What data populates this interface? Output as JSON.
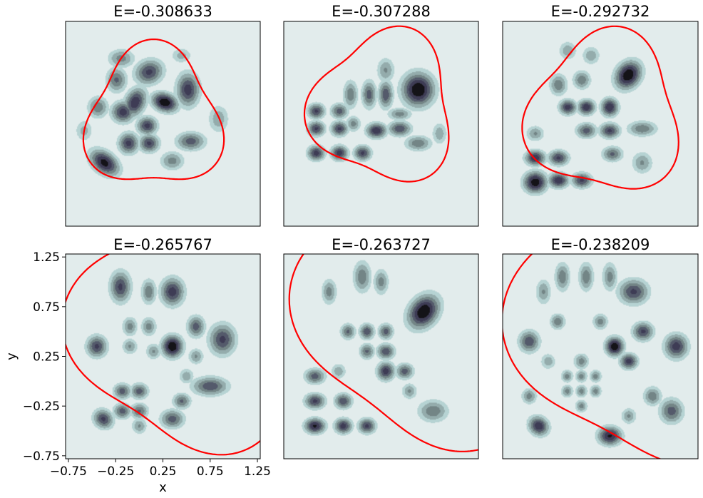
{
  "chart_data": [
    {
      "type": "heatmap",
      "title": "E=-0.308633",
      "xlabel": "",
      "ylabel": "",
      "xlim": [
        -0.8,
        1.3
      ],
      "ylim": [
        -0.8,
        1.3
      ],
      "show_ticks": false,
      "blobs": [
        [
          0.27,
          0.47,
          0.09,
          0.06,
          -0.3,
          1.0
        ],
        [
          -0.05,
          0.47,
          0.07,
          0.1,
          -0.5,
          0.8
        ],
        [
          -0.18,
          0.37,
          0.08,
          0.07,
          0.0,
          0.75
        ],
        [
          0.08,
          0.23,
          0.07,
          0.06,
          0.0,
          0.72
        ],
        [
          -0.12,
          0.05,
          0.07,
          0.07,
          0.0,
          0.72
        ],
        [
          0.1,
          0.05,
          0.07,
          0.06,
          0.0,
          0.7
        ],
        [
          -0.38,
          -0.15,
          0.11,
          0.07,
          -0.6,
          0.9
        ],
        [
          0.52,
          0.6,
          0.08,
          0.11,
          0.0,
          0.75
        ],
        [
          0.1,
          0.78,
          0.1,
          0.08,
          0.3,
          0.7
        ],
        [
          -0.25,
          0.7,
          0.07,
          0.08,
          0.0,
          0.55
        ],
        [
          -0.45,
          0.42,
          0.07,
          0.07,
          0.0,
          0.5
        ],
        [
          0.55,
          0.07,
          0.1,
          0.06,
          0.0,
          0.6
        ],
        [
          0.35,
          -0.13,
          0.08,
          0.06,
          0.0,
          0.45
        ],
        [
          -0.2,
          0.92,
          0.09,
          0.06,
          0.0,
          0.45
        ],
        [
          0.85,
          0.3,
          0.07,
          0.09,
          0.0,
          0.35
        ],
        [
          0.45,
          0.95,
          0.07,
          0.05,
          0.0,
          0.3
        ],
        [
          -0.6,
          0.18,
          0.06,
          0.07,
          0.0,
          0.3
        ]
      ],
      "boundary": {
        "cx": 0.15,
        "cy": 0.3,
        "r": 0.71,
        "a": 0.15,
        "phase": 1.571
      }
    },
    {
      "type": "heatmap",
      "title": "E=-0.307288",
      "xlabel": "",
      "ylabel": "",
      "xlim": [
        -0.8,
        1.3
      ],
      "ylim": [
        -0.8,
        1.3
      ],
      "show_ticks": false,
      "blobs": [
        [
          0.2,
          0.18,
          0.07,
          0.05,
          0.0,
          0.8
        ],
        [
          0.65,
          0.6,
          0.11,
          0.11,
          0.4,
          1.0
        ],
        [
          -0.45,
          -0.05,
          0.06,
          0.05,
          0.0,
          0.75
        ],
        [
          -0.2,
          -0.05,
          0.06,
          0.05,
          0.0,
          0.75
        ],
        [
          0.05,
          -0.05,
          0.06,
          0.05,
          0.0,
          0.7
        ],
        [
          -0.45,
          0.2,
          0.06,
          0.05,
          0.0,
          0.7
        ],
        [
          -0.2,
          0.2,
          0.06,
          0.05,
          0.0,
          0.7
        ],
        [
          -0.45,
          0.38,
          0.06,
          0.05,
          0.0,
          0.7
        ],
        [
          -0.2,
          0.38,
          0.06,
          0.05,
          0.0,
          0.6
        ],
        [
          0.45,
          0.2,
          0.08,
          0.05,
          0.0,
          0.65
        ],
        [
          0.3,
          0.55,
          0.05,
          0.09,
          0.0,
          0.65
        ],
        [
          0.12,
          0.55,
          0.05,
          0.09,
          0.0,
          0.6
        ],
        [
          -0.08,
          0.55,
          0.05,
          0.09,
          0.0,
          0.5
        ],
        [
          0.65,
          0.05,
          0.09,
          0.05,
          0.0,
          0.5
        ],
        [
          -0.05,
          0.25,
          0.05,
          0.05,
          0.0,
          0.45
        ],
        [
          0.45,
          0.35,
          0.08,
          0.04,
          0.0,
          0.45
        ],
        [
          0.3,
          0.8,
          0.06,
          0.08,
          0.0,
          0.4
        ],
        [
          0.88,
          0.15,
          0.05,
          0.07,
          0.0,
          0.35
        ]
      ],
      "boundary": {
        "cx": 0.28,
        "cy": 0.42,
        "r": 0.75,
        "a": 0.15,
        "phase": 1.2
      }
    },
    {
      "type": "heatmap",
      "title": "E=-0.292732",
      "xlabel": "",
      "ylabel": "",
      "xlim": [
        -0.8,
        1.3
      ],
      "ylim": [
        -0.8,
        1.3
      ],
      "show_ticks": false,
      "blobs": [
        [
          0.55,
          0.75,
          0.1,
          0.08,
          0.8,
          1.0
        ],
        [
          -0.45,
          -0.35,
          0.08,
          0.07,
          0.0,
          0.95
        ],
        [
          -0.2,
          -0.33,
          0.07,
          0.05,
          0.0,
          0.8
        ],
        [
          0.05,
          -0.33,
          0.07,
          0.05,
          0.0,
          0.7
        ],
        [
          -0.45,
          -0.1,
          0.07,
          0.05,
          0.0,
          0.8
        ],
        [
          -0.2,
          -0.1,
          0.07,
          0.05,
          0.0,
          0.7
        ],
        [
          0.1,
          0.42,
          0.06,
          0.05,
          0.0,
          0.8
        ],
        [
          0.35,
          0.42,
          0.06,
          0.06,
          0.0,
          0.82
        ],
        [
          -0.1,
          0.42,
          0.06,
          0.05,
          0.0,
          0.75
        ],
        [
          0.35,
          0.18,
          0.07,
          0.05,
          0.0,
          0.7
        ],
        [
          0.1,
          0.18,
          0.07,
          0.05,
          0.0,
          0.6
        ],
        [
          0.38,
          -0.06,
          0.07,
          0.05,
          0.0,
          0.55
        ],
        [
          0.7,
          0.2,
          0.1,
          0.05,
          0.0,
          0.5
        ],
        [
          -0.2,
          0.65,
          0.06,
          0.07,
          0.0,
          0.5
        ],
        [
          -0.45,
          0.15,
          0.06,
          0.05,
          0.0,
          0.4
        ],
        [
          0.05,
          0.7,
          0.06,
          0.06,
          0.0,
          0.5
        ],
        [
          0.7,
          -0.15,
          0.07,
          0.07,
          0.0,
          0.4
        ],
        [
          -0.1,
          1.0,
          0.06,
          0.06,
          0.0,
          0.35
        ],
        [
          0.15,
          0.95,
          0.06,
          0.06,
          0.0,
          0.35
        ]
      ],
      "boundary": {
        "cx": 0.3,
        "cy": 0.35,
        "r": 0.8,
        "a": 0.14,
        "phase": 1.35
      }
    },
    {
      "type": "heatmap",
      "title": "E=-0.265767",
      "xlabel": "x",
      "ylabel": "y",
      "xlim": [
        -0.78,
        1.28
      ],
      "ylim": [
        -0.78,
        1.28
      ],
      "show_ticks": true,
      "xticks": [
        "−0.75",
        "−0.25",
        "0.25",
        "0.75",
        "1.25"
      ],
      "yticks": [
        "−0.75",
        "−0.25",
        "0.25",
        "0.75",
        "1.25"
      ],
      "xtick_values": [
        -0.75,
        -0.25,
        0.25,
        0.75,
        1.25
      ],
      "ytick_values": [
        -0.75,
        -0.25,
        0.25,
        0.75,
        1.25
      ],
      "blobs": [
        [
          0.35,
          0.35,
          0.07,
          0.07,
          0.0,
          1.0
        ],
        [
          0.35,
          0.9,
          0.08,
          0.09,
          0.0,
          0.75
        ],
        [
          -0.2,
          0.95,
          0.07,
          0.1,
          0.0,
          0.7
        ],
        [
          0.88,
          0.42,
          0.09,
          0.1,
          0.0,
          0.7
        ],
        [
          -0.45,
          0.35,
          0.07,
          0.07,
          0.0,
          0.7
        ],
        [
          0.75,
          -0.05,
          0.12,
          0.06,
          0.0,
          0.65
        ],
        [
          0.6,
          0.55,
          0.06,
          0.07,
          0.0,
          0.6
        ],
        [
          -0.38,
          -0.38,
          0.07,
          0.06,
          -0.5,
          0.7
        ],
        [
          0.35,
          -0.38,
          0.08,
          0.06,
          0.0,
          0.6
        ],
        [
          -0.18,
          -0.1,
          0.06,
          0.05,
          0.0,
          0.6
        ],
        [
          0.0,
          -0.1,
          0.06,
          0.05,
          0.0,
          0.6
        ],
        [
          0.45,
          -0.2,
          0.06,
          0.05,
          0.0,
          0.55
        ],
        [
          -0.18,
          -0.3,
          0.06,
          0.05,
          0.0,
          0.6
        ],
        [
          0.0,
          -0.3,
          0.06,
          0.05,
          0.0,
          0.55
        ],
        [
          0.1,
          0.9,
          0.05,
          0.08,
          0.0,
          0.5
        ],
        [
          -0.1,
          0.55,
          0.05,
          0.06,
          0.0,
          0.45
        ],
        [
          0.1,
          0.55,
          0.05,
          0.06,
          0.0,
          0.45
        ],
        [
          -0.1,
          0.35,
          0.05,
          0.05,
          0.0,
          0.4
        ],
        [
          0.15,
          0.3,
          0.05,
          0.05,
          0.0,
          0.4
        ],
        [
          0.6,
          0.25,
          0.05,
          0.05,
          0.0,
          0.4
        ],
        [
          0.0,
          -0.45,
          0.05,
          0.05,
          0.0,
          0.4
        ],
        [
          0.5,
          0.05,
          0.05,
          0.05,
          0.0,
          0.35
        ]
      ],
      "boundary": {
        "cx": 0.55,
        "cy": 0.55,
        "r": 1.2,
        "a": 0.14,
        "phase": 1.0
      }
    },
    {
      "type": "heatmap",
      "title": "E=-0.263727",
      "xlabel": "",
      "ylabel": "",
      "xlim": [
        -0.78,
        1.28
      ],
      "ylim": [
        -0.78,
        1.28
      ],
      "show_ticks": false,
      "blobs": [
        [
          0.7,
          0.7,
          0.12,
          0.09,
          0.8,
          1.0
        ],
        [
          -0.45,
          -0.45,
          0.07,
          0.05,
          0.0,
          0.85
        ],
        [
          -0.15,
          -0.45,
          0.06,
          0.05,
          0.0,
          0.75
        ],
        [
          0.1,
          -0.45,
          0.06,
          0.05,
          0.0,
          0.7
        ],
        [
          -0.45,
          -0.2,
          0.07,
          0.05,
          0.0,
          0.7
        ],
        [
          -0.15,
          -0.2,
          0.06,
          0.05,
          0.0,
          0.65
        ],
        [
          -0.45,
          0.05,
          0.07,
          0.05,
          0.0,
          0.6
        ],
        [
          0.3,
          0.1,
          0.06,
          0.06,
          0.0,
          0.75
        ],
        [
          0.5,
          0.1,
          0.06,
          0.05,
          0.0,
          0.6
        ],
        [
          0.3,
          0.3,
          0.06,
          0.05,
          0.0,
          0.65
        ],
        [
          0.1,
          0.3,
          0.05,
          0.05,
          0.0,
          0.55
        ],
        [
          0.1,
          0.5,
          0.05,
          0.05,
          0.0,
          0.65
        ],
        [
          0.3,
          0.5,
          0.05,
          0.05,
          0.0,
          0.6
        ],
        [
          -0.1,
          0.5,
          0.05,
          0.05,
          0.0,
          0.55
        ],
        [
          0.8,
          -0.3,
          0.1,
          0.07,
          0.0,
          0.5
        ],
        [
          0.05,
          1.05,
          0.06,
          0.1,
          0.0,
          0.5
        ],
        [
          -0.3,
          0.9,
          0.05,
          0.08,
          0.0,
          0.45
        ],
        [
          0.25,
          1.0,
          0.05,
          0.08,
          0.0,
          0.45
        ],
        [
          -0.2,
          0.1,
          0.05,
          0.05,
          0.0,
          0.35
        ],
        [
          0.55,
          -0.1,
          0.05,
          0.05,
          0.0,
          0.4
        ]
      ],
      "boundary": {
        "cx": 0.8,
        "cy": 0.75,
        "r": 1.35,
        "a": 0.13,
        "phase": 0.95
      }
    },
    {
      "type": "heatmap",
      "title": "E=-0.238209",
      "xlabel": "",
      "ylabel": "",
      "xlim": [
        -0.78,
        1.28
      ],
      "ylim": [
        -0.78,
        1.28
      ],
      "show_ticks": false,
      "blobs": [
        [
          0.4,
          0.35,
          0.06,
          0.06,
          0.0,
          1.0
        ],
        [
          0.35,
          -0.55,
          0.08,
          0.06,
          0.0,
          0.85
        ],
        [
          -0.4,
          -0.45,
          0.07,
          0.06,
          -0.5,
          0.8
        ],
        [
          0.55,
          0.2,
          0.06,
          0.05,
          0.0,
          0.75
        ],
        [
          0.7,
          0.5,
          0.07,
          0.06,
          0.0,
          0.7
        ],
        [
          1.05,
          0.35,
          0.08,
          0.08,
          0.0,
          0.75
        ],
        [
          0.6,
          0.9,
          0.1,
          0.08,
          0.0,
          0.7
        ],
        [
          1.0,
          -0.3,
          0.08,
          0.08,
          0.0,
          0.6
        ],
        [
          -0.5,
          0.4,
          0.07,
          0.07,
          0.0,
          0.65
        ],
        [
          0.8,
          -0.15,
          0.06,
          0.06,
          0.0,
          0.5
        ],
        [
          0.05,
          0.2,
          0.05,
          0.05,
          0.0,
          0.45
        ],
        [
          -0.1,
          0.05,
          0.04,
          0.04,
          0.0,
          0.45
        ],
        [
          0.05,
          0.05,
          0.04,
          0.04,
          0.0,
          0.45
        ],
        [
          0.2,
          0.05,
          0.04,
          0.04,
          0.0,
          0.45
        ],
        [
          -0.1,
          -0.1,
          0.04,
          0.04,
          0.0,
          0.45
        ],
        [
          0.05,
          -0.1,
          0.04,
          0.04,
          0.0,
          0.45
        ],
        [
          0.2,
          -0.1,
          0.04,
          0.04,
          0.0,
          0.45
        ],
        [
          0.05,
          -0.25,
          0.04,
          0.04,
          0.0,
          0.45
        ],
        [
          -0.2,
          0.6,
          0.05,
          0.05,
          0.0,
          0.5
        ],
        [
          0.1,
          1.05,
          0.05,
          0.09,
          0.0,
          0.5
        ],
        [
          -0.15,
          1.05,
          0.05,
          0.09,
          0.0,
          0.5
        ],
        [
          0.35,
          1.05,
          0.05,
          0.09,
          0.0,
          0.45
        ],
        [
          -0.35,
          0.9,
          0.05,
          0.08,
          0.0,
          0.4
        ],
        [
          0.25,
          0.6,
          0.05,
          0.05,
          0.0,
          0.45
        ],
        [
          0.55,
          -0.35,
          0.05,
          0.05,
          0.0,
          0.4
        ],
        [
          -0.5,
          -0.15,
          0.05,
          0.05,
          0.0,
          0.45
        ],
        [
          -0.3,
          0.2,
          0.05,
          0.05,
          0.0,
          0.35
        ]
      ],
      "boundary": {
        "cx": 0.85,
        "cy": 0.65,
        "r": 1.45,
        "a": 0.13,
        "phase": 1.1
      }
    }
  ],
  "colors": {
    "background": "#e2ecec",
    "curve": "#ff0000",
    "levels": [
      "#e2ecec",
      "#b6d3d3",
      "#94acac",
      "#738586",
      "#545a6b",
      "#3e3c55",
      "#141318"
    ]
  }
}
